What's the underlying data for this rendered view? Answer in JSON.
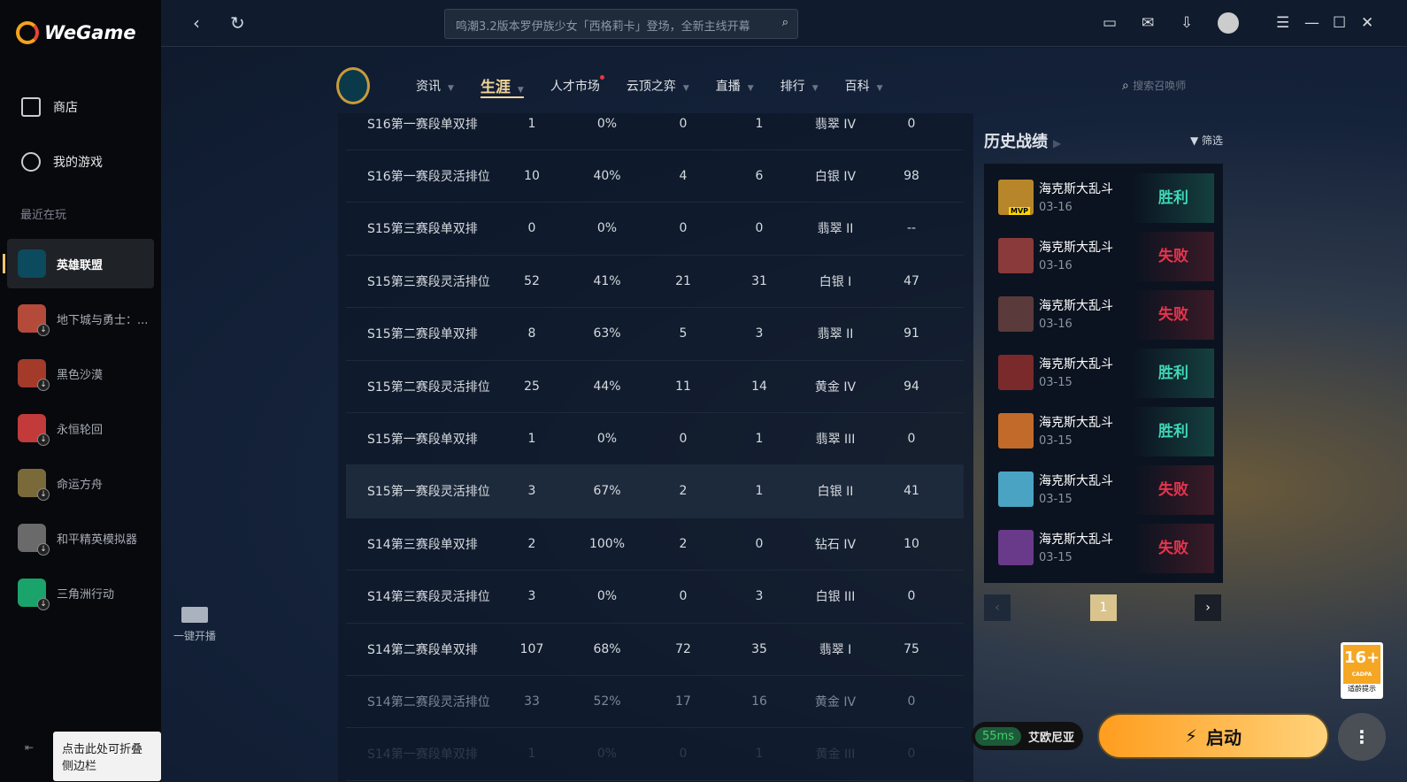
{
  "app": {
    "name": "WeGame"
  },
  "sidebar": {
    "nav": [
      {
        "label": "商店",
        "icon": "shop-bag-icon"
      },
      {
        "label": "我的游戏",
        "icon": "gamepad-icon"
      }
    ],
    "recent_label": "最近在玩",
    "games": [
      {
        "label": "英雄联盟",
        "color": "#0c4a5e",
        "active": true
      },
      {
        "label": "地下城与勇士：...",
        "color": "#b44a3a"
      },
      {
        "label": "黑色沙漠",
        "color": "#a33a2a"
      },
      {
        "label": "永恒轮回",
        "color": "#c23a3a"
      },
      {
        "label": "命运方舟",
        "color": "#7a6a3a"
      },
      {
        "label": "和平精英模拟器",
        "color": "#6a6a6a"
      },
      {
        "label": "三角洲行动",
        "color": "#1aa36a"
      }
    ],
    "collapse_tooltip": "点击此处可折叠侧边栏"
  },
  "topbar": {
    "search_placeholder": "鸣潮3.2版本罗伊族少女「西格莉卡」登场，全新主线开幕"
  },
  "lol_nav": {
    "items": [
      {
        "label": "资讯"
      },
      {
        "label": "生涯",
        "active": true
      },
      {
        "label": "人才市场",
        "dot": true
      },
      {
        "label": "云顶之弈"
      },
      {
        "label": "直播"
      },
      {
        "label": "排行"
      },
      {
        "label": "百科"
      }
    ],
    "search_placeholder": "搜索召唤师"
  },
  "table": {
    "rows": [
      [
        "S16第一赛段单双排",
        "1",
        "0%",
        "0",
        "1",
        "翡翠 IV",
        "0"
      ],
      [
        "S16第一赛段灵活排位",
        "10",
        "40%",
        "4",
        "6",
        "白银 IV",
        "98"
      ],
      [
        "S15第三赛段单双排",
        "0",
        "0%",
        "0",
        "0",
        "翡翠 II",
        "--"
      ],
      [
        "S15第三赛段灵活排位",
        "52",
        "41%",
        "21",
        "31",
        "白银 I",
        "47"
      ],
      [
        "S15第二赛段单双排",
        "8",
        "63%",
        "5",
        "3",
        "翡翠 II",
        "91"
      ],
      [
        "S15第二赛段灵活排位",
        "25",
        "44%",
        "11",
        "14",
        "黄金 IV",
        "94"
      ],
      [
        "S15第一赛段单双排",
        "1",
        "0%",
        "0",
        "1",
        "翡翠 III",
        "0"
      ],
      [
        "S15第一赛段灵活排位",
        "3",
        "67%",
        "2",
        "1",
        "白银 II",
        "41"
      ],
      [
        "S14第三赛段单双排",
        "2",
        "100%",
        "2",
        "0",
        "钻石 IV",
        "10"
      ],
      [
        "S14第三赛段灵活排位",
        "3",
        "0%",
        "0",
        "3",
        "白银 III",
        "0"
      ],
      [
        "S14第二赛段单双排",
        "107",
        "68%",
        "72",
        "35",
        "翡翠 I",
        "75"
      ],
      [
        "S14第二赛段灵活排位",
        "33",
        "52%",
        "17",
        "16",
        "黄金 IV",
        "0"
      ],
      [
        "S14第一赛段单双排",
        "1",
        "0%",
        "0",
        "1",
        "黄金 III",
        "0"
      ]
    ],
    "highlighted_row": 7
  },
  "history": {
    "title": "历史战绩",
    "filter": "筛选",
    "matches": [
      {
        "mode": "海克斯大乱斗",
        "date": "03-16",
        "result": "胜利",
        "win": true,
        "mvp": "MVP",
        "color": "#b8862a"
      },
      {
        "mode": "海克斯大乱斗",
        "date": "03-16",
        "result": "失败",
        "win": false,
        "color": "#8a3a3a"
      },
      {
        "mode": "海克斯大乱斗",
        "date": "03-16",
        "result": "失败",
        "win": false,
        "color": "#5a3a3a"
      },
      {
        "mode": "海克斯大乱斗",
        "date": "03-15",
        "result": "胜利",
        "win": true,
        "color": "#7a2a2a"
      },
      {
        "mode": "海克斯大乱斗",
        "date": "03-15",
        "result": "胜利",
        "win": true,
        "color": "#c26a2a"
      },
      {
        "mode": "海克斯大乱斗",
        "date": "03-15",
        "result": "失败",
        "win": false,
        "color": "#4aa3c2"
      },
      {
        "mode": "海克斯大乱斗",
        "date": "03-15",
        "result": "失败",
        "win": false,
        "color": "#6a3a8a"
      }
    ],
    "page": "1"
  },
  "live": {
    "label": "一键开播"
  },
  "footer": {
    "latency": "55ms",
    "server": "艾欧尼亚",
    "launch": "启动",
    "age_rating": "16+",
    "age_org": "CADPA",
    "age_note": "适龄提示"
  },
  "colors": {
    "win": "#3fd6b8",
    "loss": "#e8334d",
    "accent": "#f2d59b",
    "launch": "#ff9d1e"
  }
}
